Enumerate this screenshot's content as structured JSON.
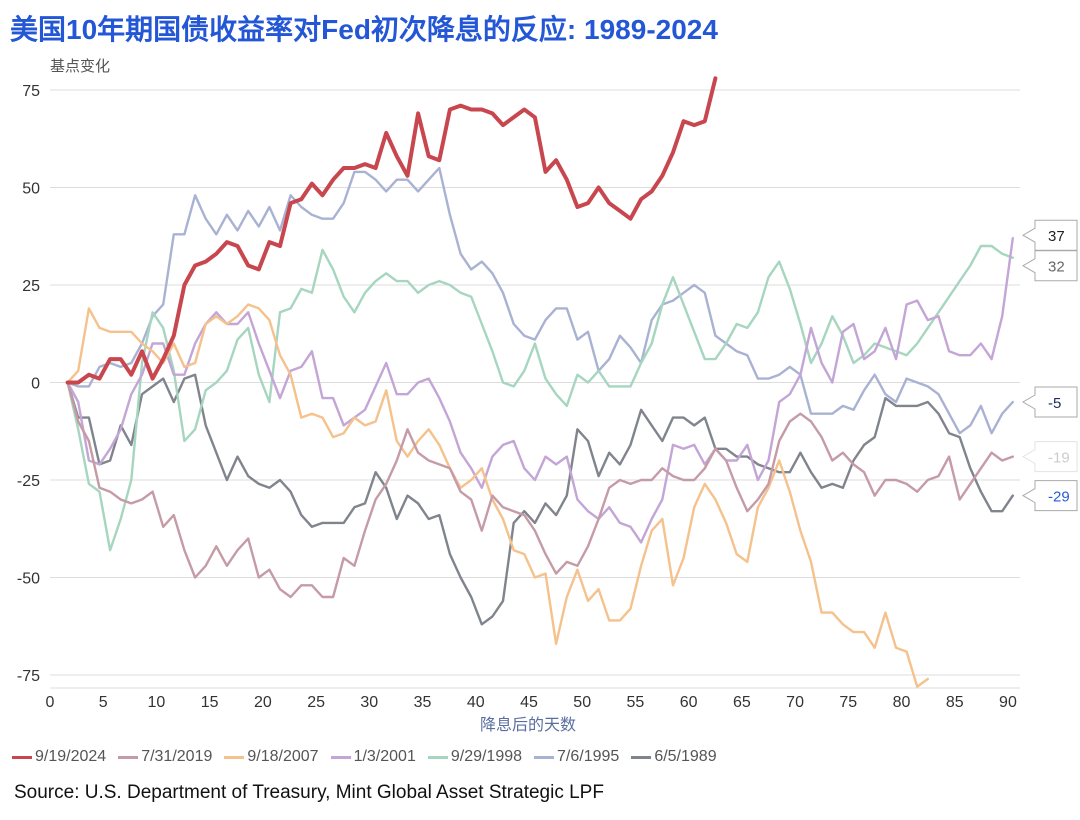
{
  "title": "美国10年期国债收益率对Fed初次降息的反应: 1989-2024",
  "source": "Source: U.S. Department of Treasury, Mint Global Asset Strategic LPF",
  "chart_data": {
    "type": "line",
    "title": "美国10年期国债收益率对Fed初次降息的反应: 1989-2024",
    "xlabel": "降息后的天数",
    "ylabel": "基点变化",
    "xlim": [
      0,
      90
    ],
    "ylim": [
      -75,
      75
    ],
    "xticks": [
      0,
      5,
      10,
      15,
      20,
      25,
      30,
      35,
      40,
      45,
      50,
      55,
      60,
      65,
      70,
      75,
      80,
      85,
      90
    ],
    "yticks": [
      75,
      50,
      25,
      0,
      -25,
      -50,
      -75
    ],
    "grid": "horizontal",
    "legend": "bottom",
    "x_start": 1,
    "series": [
      {
        "name": "9/19/2024",
        "color": "#c8474f",
        "emphasis": true,
        "values": [
          0,
          0,
          2,
          1,
          6,
          6,
          2,
          8,
          1,
          6,
          12,
          25,
          30,
          31,
          33,
          36,
          35,
          30,
          29,
          36,
          35,
          46,
          47,
          51,
          48,
          52,
          55,
          55,
          56,
          55,
          64,
          58,
          53,
          69,
          58,
          57,
          70,
          71,
          70,
          70,
          69,
          66,
          68,
          70,
          68,
          54,
          57,
          52,
          45,
          46,
          50,
          46,
          44,
          42,
          47,
          49,
          53,
          59,
          67,
          66,
          67,
          78
        ]
      },
      {
        "name": "7/31/2019",
        "color": "#c49ba6",
        "end_label": "-19",
        "label_color": "#cccccc",
        "values": [
          0,
          -10,
          -15,
          -27,
          -28,
          -30,
          -31,
          -30,
          -28,
          -37,
          -34,
          -43,
          -50,
          -47,
          -42,
          -47,
          -43,
          -40,
          -50,
          -48,
          -53,
          -55,
          -52,
          -52,
          -55,
          -55,
          -45,
          -47,
          -38,
          -30,
          -26,
          -20,
          -12,
          -18,
          -20,
          -21,
          -22,
          -28,
          -30,
          -38,
          -29,
          -32,
          -33,
          -34,
          -38,
          -44,
          -49,
          -46,
          -47,
          -42,
          -35,
          -27,
          -25,
          -26,
          -25,
          -25,
          -22,
          -24,
          -25,
          -25,
          -22,
          -17,
          -20,
          -27,
          -33,
          -30,
          -26,
          -15,
          -10,
          -8,
          -10,
          -14,
          -20,
          -18,
          -21,
          -23,
          -29,
          -25,
          -25,
          -26,
          -28,
          -25,
          -24,
          -19,
          -30,
          -26,
          -22,
          -18,
          -20,
          -19
        ]
      },
      {
        "name": "9/18/2007",
        "color": "#f5c18c",
        "values": [
          0,
          3,
          19,
          14,
          13,
          13,
          13,
          10,
          8,
          5,
          10,
          4,
          5,
          15,
          17,
          15,
          17,
          20,
          19,
          16,
          7,
          2,
          -9,
          -8,
          -9,
          -14,
          -13,
          -9,
          -11,
          -10,
          -2,
          -15,
          -19,
          -15,
          -12,
          -16,
          -22,
          -27,
          -25,
          -22,
          -30,
          -35,
          -43,
          -44,
          -50,
          -49,
          -67,
          -55,
          -48,
          -56,
          -53,
          -61,
          -61,
          -58,
          -47,
          -38,
          -35,
          -52,
          -45,
          -32,
          -26,
          -30,
          -36,
          -44,
          -46,
          -32,
          -27,
          -20,
          -28,
          -38,
          -46,
          -59,
          -59,
          -62,
          -64,
          -64,
          -68,
          -59,
          -68,
          -69,
          -78,
          -76
        ]
      },
      {
        "name": "1/3/2001",
        "color": "#c3a5d6",
        "end_label": "37",
        "label_color": "#222222",
        "values": [
          0,
          -5,
          -20,
          -21,
          -17,
          -12,
          -3,
          2,
          10,
          10,
          2,
          2,
          10,
          15,
          18,
          15,
          15,
          18,
          10,
          3,
          -4,
          3,
          4,
          8,
          -4,
          -4,
          -11,
          -9,
          -7,
          -1,
          5,
          -3,
          -3,
          0,
          1,
          -4,
          -10,
          -18,
          -22,
          -27,
          -19,
          -16,
          -15,
          -22,
          -25,
          -19,
          -21,
          -19,
          -30,
          -33,
          -35,
          -32,
          -36,
          -37,
          -41,
          -35,
          -30,
          -16,
          -17,
          -16,
          -21,
          -17,
          -20,
          -20,
          -16,
          -25,
          -20,
          -5,
          -3,
          2,
          14,
          5,
          0,
          13,
          15,
          6,
          8,
          14,
          6,
          20,
          21,
          16,
          17,
          8,
          7,
          7,
          10,
          6,
          17,
          37
        ]
      },
      {
        "name": "9/29/1998",
        "color": "#a6d6bf",
        "end_label": "32",
        "label_color": "#666666",
        "values": [
          0,
          -12,
          -26,
          -28,
          -43,
          -35,
          -25,
          5,
          18,
          14,
          3,
          -15,
          -12,
          -2,
          0,
          3,
          11,
          14,
          2,
          -5,
          18,
          19,
          24,
          23,
          34,
          29,
          22,
          18,
          23,
          26,
          28,
          26,
          26,
          23,
          25,
          26,
          25,
          23,
          22,
          15,
          8,
          0,
          -1,
          3,
          10,
          1,
          -3,
          -6,
          2,
          0,
          3,
          -1,
          -1,
          -1,
          5,
          10,
          20,
          27,
          20,
          13,
          6,
          6,
          10,
          15,
          14,
          18,
          27,
          31,
          24,
          15,
          5,
          10,
          17,
          12,
          5,
          7,
          10,
          9,
          8,
          7,
          10,
          14,
          18,
          22,
          26,
          30,
          35,
          35,
          33,
          32
        ]
      },
      {
        "name": "7/6/1995",
        "color": "#a9b2d3",
        "end_label": "-5",
        "label_color": "#1f2d5a",
        "values": [
          0,
          -1,
          -1,
          4,
          5,
          4,
          5,
          10,
          17,
          20,
          38,
          38,
          48,
          42,
          38,
          43,
          39,
          44,
          40,
          45,
          39,
          48,
          45,
          43,
          42,
          42,
          46,
          54,
          54,
          52,
          49,
          52,
          52,
          49,
          52,
          55,
          43,
          33,
          29,
          31,
          28,
          23,
          15,
          12,
          11,
          16,
          19,
          19,
          11,
          13,
          3,
          6,
          12,
          9,
          5,
          16,
          20,
          21,
          23,
          25,
          23,
          12,
          10,
          8,
          7,
          1,
          1,
          2,
          4,
          2,
          -8,
          -8,
          -8,
          -6,
          -7,
          -2,
          2,
          -3,
          -5,
          1,
          0,
          -1,
          -3,
          -8,
          -13,
          -11,
          -6,
          -13,
          -8,
          -5
        ]
      },
      {
        "name": "6/5/1989",
        "color": "#80848d",
        "end_label": "-29",
        "label_color": "#2a5bd7",
        "values": [
          0,
          -9,
          -9,
          -21,
          -20,
          -11,
          -16,
          -3,
          -1,
          1,
          -5,
          1,
          2,
          -11,
          -18,
          -25,
          -19,
          -24,
          -26,
          -27,
          -25,
          -28,
          -34,
          -37,
          -36,
          -36,
          -36,
          -32,
          -31,
          -23,
          -27,
          -35,
          -29,
          -31,
          -35,
          -34,
          -44,
          -50,
          -55,
          -62,
          -60,
          -56,
          -36,
          -33,
          -36,
          -31,
          -34,
          -29,
          -12,
          -15,
          -24,
          -18,
          -21,
          -16,
          -7,
          -11,
          -15,
          -9,
          -9,
          -11,
          -9,
          -17,
          -17,
          -19,
          -19,
          -21,
          -22,
          -23,
          -23,
          -18,
          -23,
          -27,
          -26,
          -27,
          -20,
          -16,
          -14,
          -4,
          -6,
          -6,
          -6,
          -5,
          -8,
          -13,
          -14,
          -22,
          -28,
          -33,
          -33,
          -29
        ]
      }
    ]
  }
}
